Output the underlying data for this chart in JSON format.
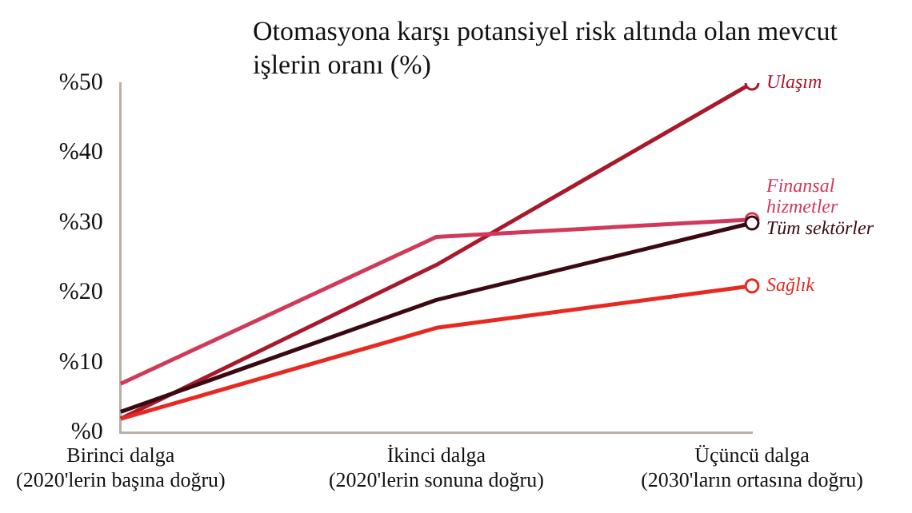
{
  "chart_data": {
    "type": "line",
    "title": "Otomasyona karşı potansiyel risk altında olan mevcut işlerin oranı (%)",
    "categories": [
      "Birinci dalga\n(2020'lerin başına doğru)",
      "İkinci dalga\n(2020'lerin sonuna doğru)",
      "Üçüncü dalga\n(2030'ların ortasına doğru)"
    ],
    "series": [
      {
        "name": "Ulaşım",
        "color": "#a8192b",
        "values": [
          2,
          24,
          50
        ]
      },
      {
        "name": "Finansal hizmetler",
        "color": "#d03a5a",
        "values": [
          7,
          28,
          30.5
        ]
      },
      {
        "name": "Tüm sektörler",
        "color": "#3a0a10",
        "values": [
          3,
          19,
          30
        ]
      },
      {
        "name": "Sağlık",
        "color": "#e62a22",
        "values": [
          2,
          15,
          21
        ]
      }
    ],
    "ylim": [
      0,
      50
    ],
    "yticks": [
      {
        "value": 0,
        "label": "%0"
      },
      {
        "value": 10,
        "label": "%10"
      },
      {
        "value": 20,
        "label": "%20"
      },
      {
        "value": 30,
        "label": "%30"
      },
      {
        "value": 40,
        "label": "%40"
      },
      {
        "value": 50,
        "label": "%50"
      }
    ],
    "grid": false,
    "legend": false,
    "line_style": "solid"
  }
}
